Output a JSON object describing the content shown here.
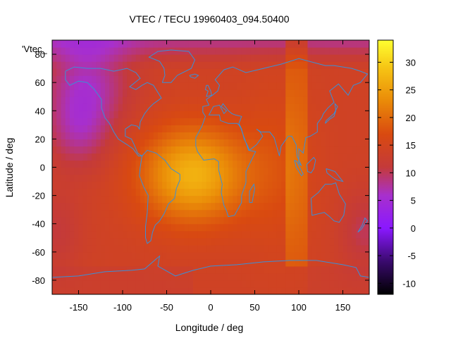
{
  "chart_data": {
    "type": "heatmap",
    "title": "VTEC / TECU 19960403_094.50400",
    "xlabel": "Longitude / deg",
    "ylabel": "Latitude / deg",
    "key_label": "'Vtec_",
    "xlim": [
      -180,
      180
    ],
    "ylim": [
      -90,
      90
    ],
    "x_ticks": [
      -150,
      -100,
      -50,
      0,
      50,
      100,
      150
    ],
    "y_ticks": [
      -80,
      -60,
      -40,
      -20,
      0,
      20,
      40,
      60,
      80
    ],
    "colorbar": {
      "min": -12,
      "max": 34,
      "ticks": [
        -10,
        -5,
        0,
        5,
        10,
        15,
        20,
        25,
        30
      ],
      "palette": "black-blue-purple-red-orange-yellow"
    },
    "features": {
      "peak_value_tecu": 27,
      "peak_location": {
        "lon": -20,
        "lat": -5
      },
      "high_latitude_values_tecu": 7,
      "mid_latitude_values_tecu": 14
    },
    "grid": false,
    "overlay": "coastlines"
  }
}
